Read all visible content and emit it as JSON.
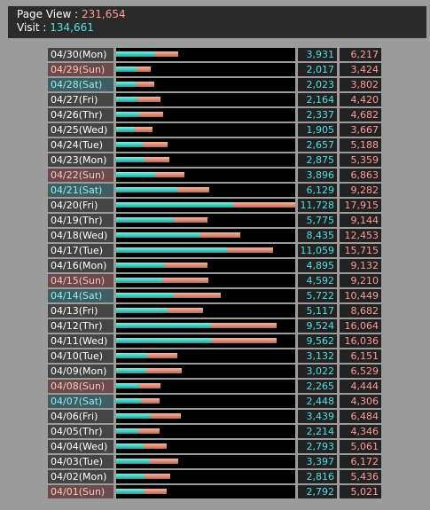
{
  "summary": {
    "page_view_label": "Page View : ",
    "page_view_value": "231,654",
    "visit_label": "Visit : ",
    "visit_value": "134,661"
  },
  "colors": {
    "visit": "#4ee0e0",
    "page_view": "#ff9a9a",
    "sunday": "#6a4a4a",
    "saturday": "#3e5e62"
  },
  "chart_data": {
    "type": "bar",
    "orientation": "horizontal",
    "stacked": false,
    "categories": [
      "04/30(Mon)",
      "04/29(Sun)",
      "04/28(Sat)",
      "04/27(Fri)",
      "04/26(Thr)",
      "04/25(Wed)",
      "04/24(Tue)",
      "04/23(Mon)",
      "04/22(Sun)",
      "04/21(Sat)",
      "04/20(Fri)",
      "04/19(Thr)",
      "04/18(Wed)",
      "04/17(Tue)",
      "04/16(Mon)",
      "04/15(Sun)",
      "04/14(Sat)",
      "04/13(Fri)",
      "04/12(Thr)",
      "04/11(Wed)",
      "04/10(Tue)",
      "04/09(Mon)",
      "04/08(Sun)",
      "04/07(Sat)",
      "04/06(Fri)",
      "04/05(Thr)",
      "04/04(Wed)",
      "04/03(Tue)",
      "04/02(Mon)",
      "04/01(Sun)"
    ],
    "series": [
      {
        "name": "Visit",
        "values": [
          3931,
          2017,
          2023,
          2164,
          2337,
          1905,
          2657,
          2875,
          3896,
          6129,
          11728,
          5775,
          8435,
          11059,
          4895,
          4592,
          5722,
          5117,
          9524,
          9562,
          3132,
          3022,
          2265,
          2448,
          3439,
          2214,
          2793,
          3397,
          2816,
          2792
        ]
      },
      {
        "name": "Page View",
        "values": [
          6217,
          3424,
          3802,
          4420,
          4682,
          3667,
          5188,
          5359,
          6863,
          9282,
          17915,
          9144,
          12453,
          15715,
          9132,
          9210,
          10449,
          8682,
          16064,
          16036,
          6151,
          6529,
          4444,
          4306,
          6484,
          4346,
          5061,
          6172,
          5436,
          5021
        ]
      }
    ],
    "xlim": [
      0,
      17915
    ],
    "grid": false,
    "legend": "none"
  }
}
